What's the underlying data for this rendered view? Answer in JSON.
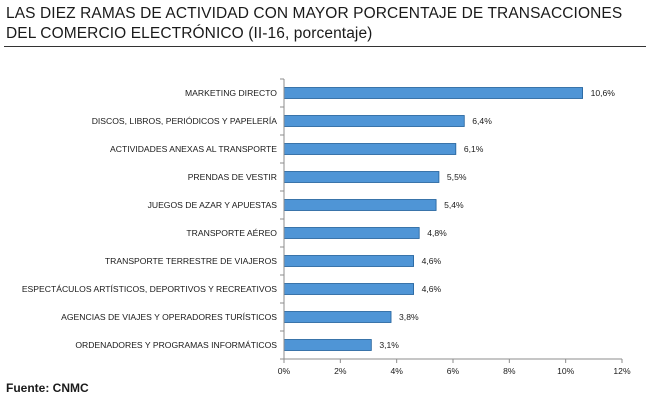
{
  "title": "LAS DIEZ RAMAS DE ACTIVIDAD CON MAYOR PORCENTAJE DE TRANSACCIONES DEL COMERCIO ELECTRÓNICO (II-16, porcentaje)",
  "source": "Fuente: CNMC",
  "chart_data": {
    "type": "bar",
    "orientation": "horizontal",
    "title": "LAS DIEZ RAMAS DE ACTIVIDAD CON MAYOR PORCENTAJE DE TRANSACCIONES DEL COMERCIO ELECTRÓNICO (II-16, porcentaje)",
    "categories": [
      "MARKETING DIRECTO",
      "DISCOS, LIBROS, PERIÓDICOS Y PAPELERÍA",
      "ACTIVIDADES ANEXAS AL TRANSPORTE",
      "PRENDAS DE VESTIR",
      "JUEGOS DE AZAR Y APUESTAS",
      "TRANSPORTE AÉREO",
      "TRANSPORTE TERRESTRE DE VIAJEROS",
      "ESPECTÁCULOS ARTÍSTICOS, DEPORTIVOS Y RECREATIVOS",
      "AGENCIAS DE VIAJES Y OPERADORES TURÍSTICOS",
      "ORDENADORES Y PROGRAMAS INFORMÁTICOS"
    ],
    "values": [
      10.6,
      6.4,
      6.1,
      5.5,
      5.4,
      4.8,
      4.6,
      4.6,
      3.8,
      3.1
    ],
    "value_labels": [
      "10,6%",
      "6,4%",
      "6,1%",
      "5,5%",
      "5,4%",
      "4,8%",
      "4,6%",
      "4,6%",
      "3,8%",
      "3,1%"
    ],
    "xlim": [
      0,
      12
    ],
    "xticks": [
      0,
      2,
      4,
      6,
      8,
      10,
      12
    ],
    "xtick_labels": [
      "0%",
      "2%",
      "4%",
      "6%",
      "8%",
      "10%",
      "12%"
    ],
    "grid": false,
    "legend": "none",
    "colors": {
      "bar_fill": "#4f95d6",
      "bar_stroke": "#1f5f9a",
      "axis": "#8c8c8c"
    }
  }
}
